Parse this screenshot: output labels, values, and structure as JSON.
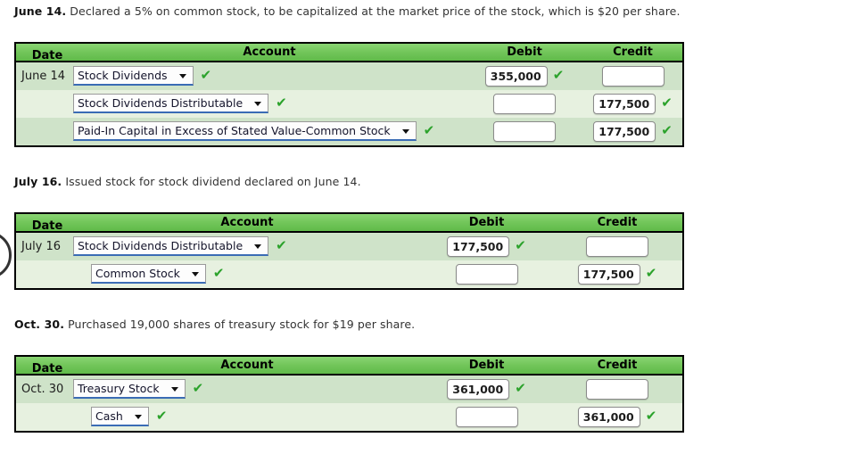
{
  "icons": {
    "check": "✔",
    "dropdown_arrow": "▾"
  },
  "colors": {
    "header_green_top": "#8ad573",
    "header_green_bottom": "#60ba49",
    "row_dark": "#cfe3c9",
    "row_light": "#e7f1e0",
    "check_green": "#2ba22b",
    "select_underline_blue": "#3a6cb5",
    "table_border": "#000000"
  },
  "sections": [
    {
      "prompt_date": "June 14.",
      "prompt_text": " Declared a 5% on common stock, to be capitalized at the market price of the stock, which is $20 per share.",
      "headers": {
        "date": "Date",
        "account": "Account",
        "debit": "Debit",
        "credit": "Credit"
      },
      "rows": [
        {
          "date": "June 14",
          "account": "Stock Dividends",
          "debit": "355,000",
          "credit": ""
        },
        {
          "date": "",
          "account": "Stock Dividends Distributable",
          "debit": "",
          "credit": "177,500"
        },
        {
          "date": "",
          "account": "Paid-In Capital in Excess of Stated Value-Common Stock",
          "debit": "",
          "credit": "177,500"
        }
      ]
    },
    {
      "prompt_date": "July 16.",
      "prompt_text": " Issued stock for stock dividend declared on June 14.",
      "headers": {
        "date": "Date",
        "account": "Account",
        "debit": "Debit",
        "credit": "Credit"
      },
      "rows": [
        {
          "date": "July 16",
          "account": "Stock Dividends Distributable",
          "debit": "177,500",
          "credit": ""
        },
        {
          "date": "",
          "account": "Common Stock",
          "debit": "",
          "credit": "177,500"
        }
      ]
    },
    {
      "prompt_date": "Oct. 30.",
      "prompt_text": " Purchased 19,000 shares of treasury stock for $19 per share.",
      "headers": {
        "date": "Date",
        "account": "Account",
        "debit": "Debit",
        "credit": "Credit"
      },
      "rows": [
        {
          "date": "Oct. 30",
          "account": "Treasury Stock",
          "debit": "361,000",
          "credit": ""
        },
        {
          "date": "",
          "account": "Cash",
          "debit": "",
          "credit": "361,000"
        }
      ]
    }
  ]
}
